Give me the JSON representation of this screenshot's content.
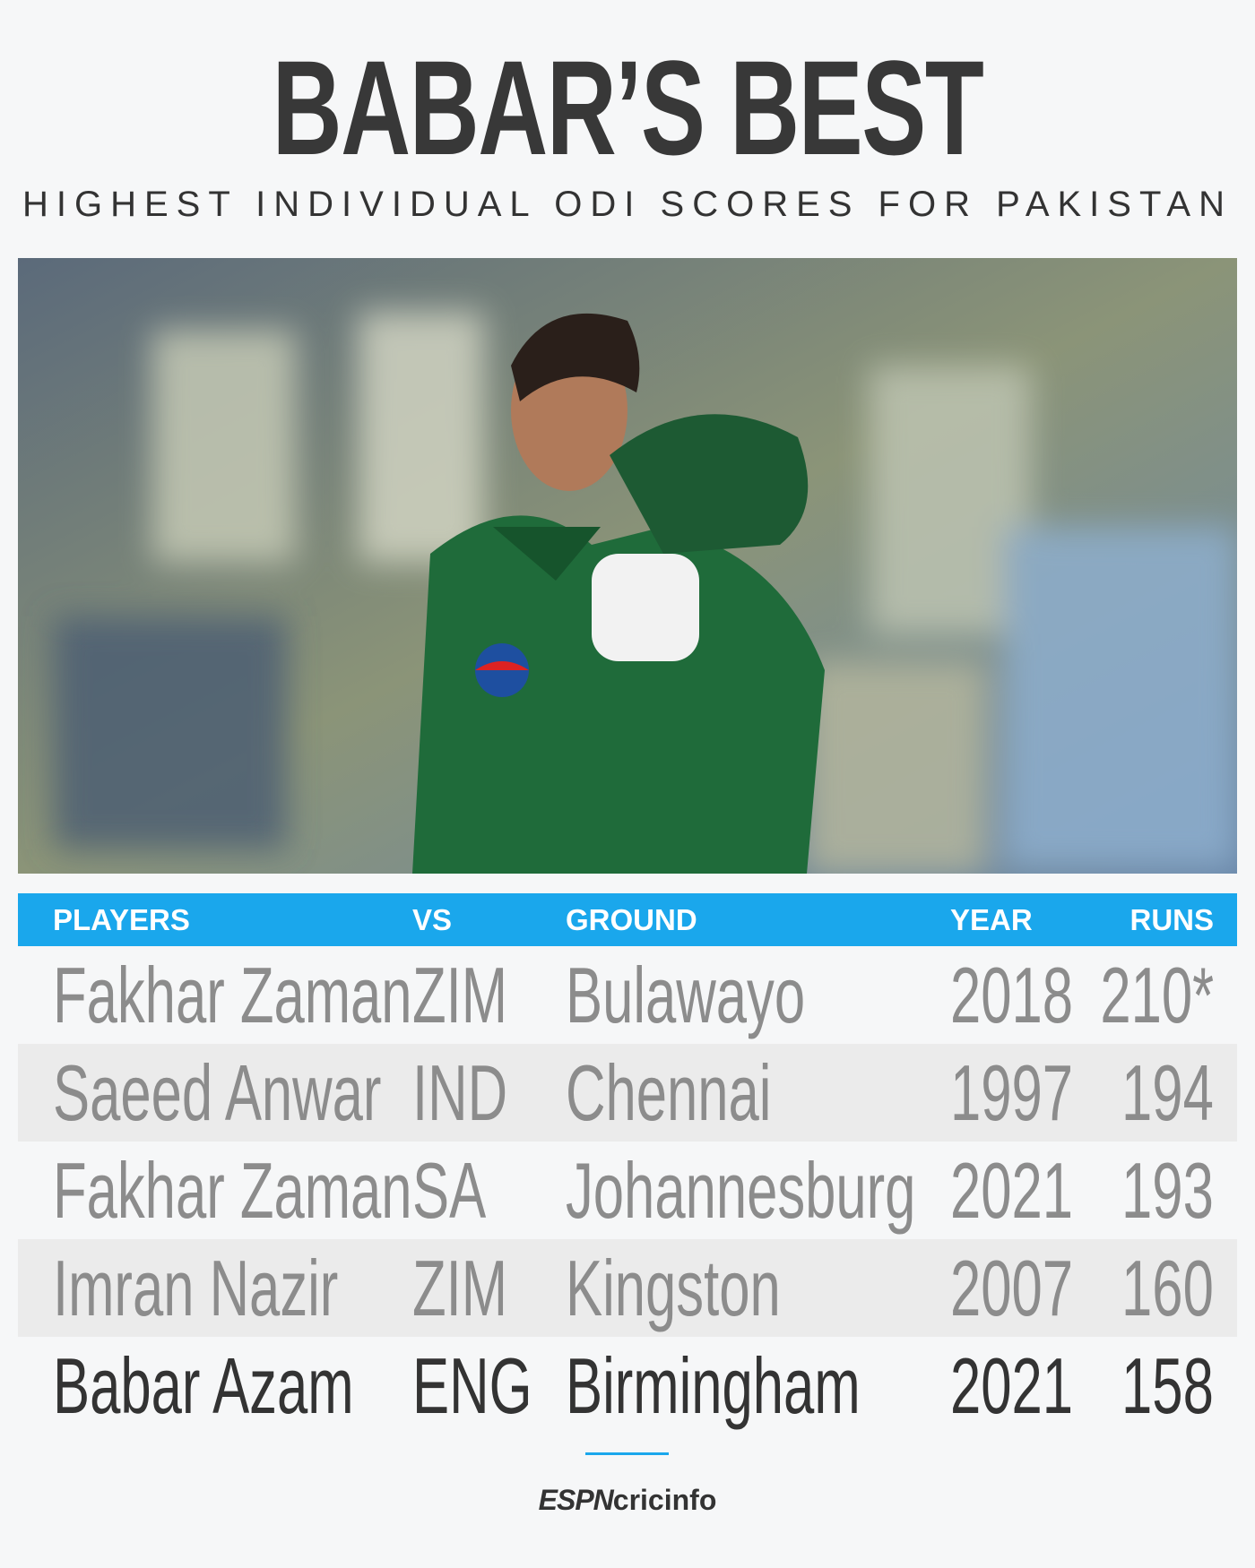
{
  "header": {
    "title": "BABAR’S BEST",
    "subtitle": "HIGHEST INDIVIDUAL ODI SCORES FOR PAKISTAN"
  },
  "table": {
    "columns": [
      "PLAYERS",
      "VS",
      "GROUND",
      "YEAR",
      "RUNS"
    ],
    "rows": [
      [
        "Fakhar Zaman",
        "ZIM",
        "Bulawayo",
        2018,
        "210*"
      ],
      [
        "Saeed Anwar",
        "IND",
        "Chennai",
        1997,
        194
      ],
      [
        "Fakhar Zaman",
        "SA",
        "Johannesburg",
        2021,
        193
      ],
      [
        "Imran Nazir",
        "ZIM",
        "Kingston",
        2007,
        160
      ],
      [
        "Babar Azam",
        "ENG",
        "Birmingham",
        2021,
        158
      ]
    ]
  },
  "footer": {
    "brand": "ESPN",
    "name": "cricinfo"
  }
}
